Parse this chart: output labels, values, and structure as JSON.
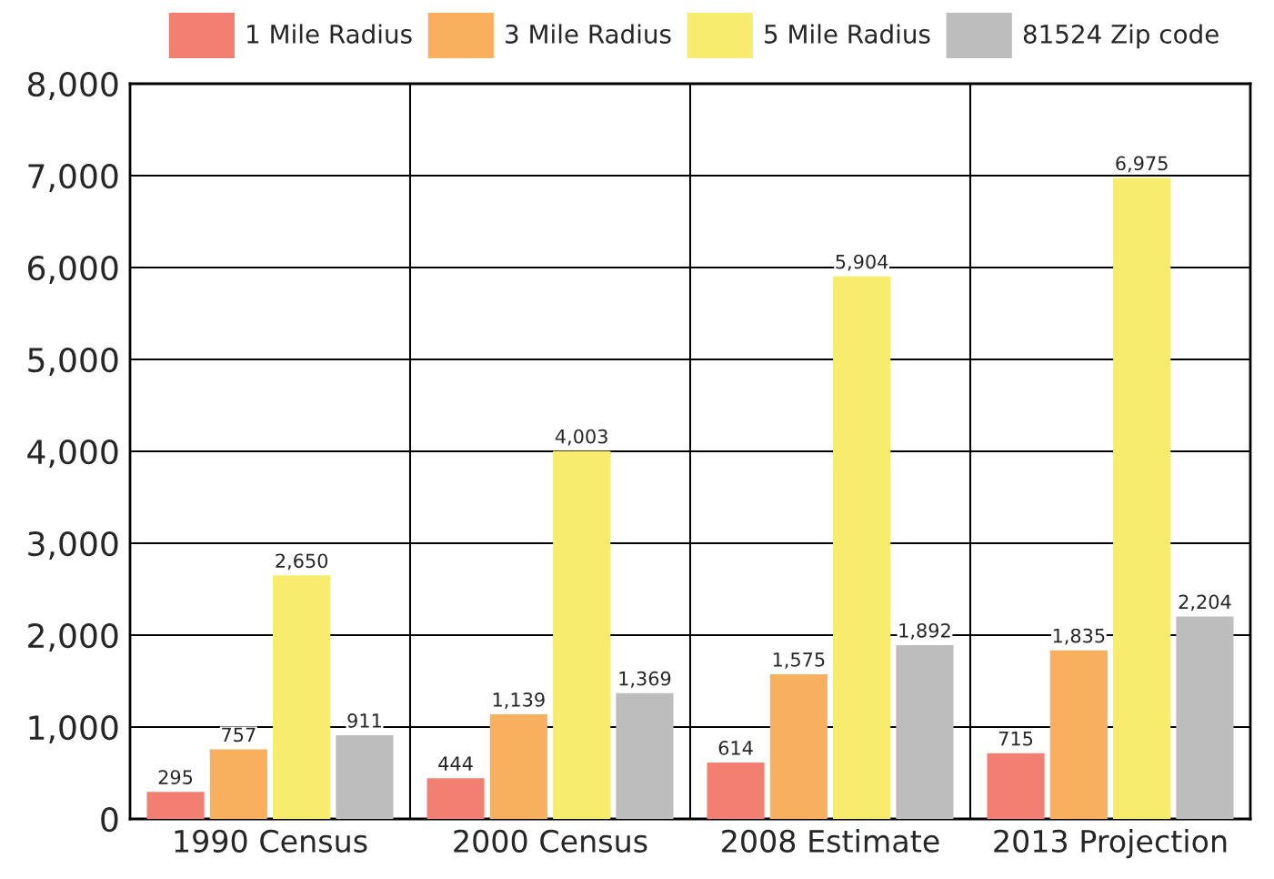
{
  "chart_data": {
    "type": "bar",
    "categories": [
      "1990 Census",
      "2000 Census",
      "2008 Estimate",
      "2013 Projection"
    ],
    "series": [
      {
        "name": "1 Mile Radius",
        "color": "#f28072",
        "values": [
          295,
          444,
          614,
          715
        ],
        "value_labels": [
          "295",
          "444",
          "614",
          "715"
        ]
      },
      {
        "name": "3 Mile Radius",
        "color": "#f9b05e",
        "values": [
          757,
          1139,
          1575,
          1835
        ],
        "value_labels": [
          "757",
          "1,139",
          "1,575",
          "1,835"
        ]
      },
      {
        "name": "5 Mile Radius",
        "color": "#f8ec6e",
        "values": [
          2650,
          4003,
          5904,
          6975
        ],
        "value_labels": [
          "2,650",
          "4,003",
          "5,904",
          "6,975"
        ]
      },
      {
        "name": "81524 Zip code",
        "color": "#bdbdbd",
        "values": [
          911,
          1369,
          1892,
          2204
        ],
        "value_labels": [
          "911",
          "1,369",
          "1,892",
          "2,204"
        ]
      }
    ],
    "ylim": [
      0,
      8000
    ],
    "yticks": [
      {
        "value": 0,
        "label": "0"
      },
      {
        "value": 1000,
        "label": "1,000"
      },
      {
        "value": 2000,
        "label": "2,000"
      },
      {
        "value": 3000,
        "label": "3,000"
      },
      {
        "value": 4000,
        "label": "4,000"
      },
      {
        "value": 5000,
        "label": "5,000"
      },
      {
        "value": 6000,
        "label": "6,000"
      },
      {
        "value": 7000,
        "label": "7,000"
      },
      {
        "value": 8000,
        "label": "8,000"
      }
    ],
    "grid": true,
    "legend": "top"
  }
}
